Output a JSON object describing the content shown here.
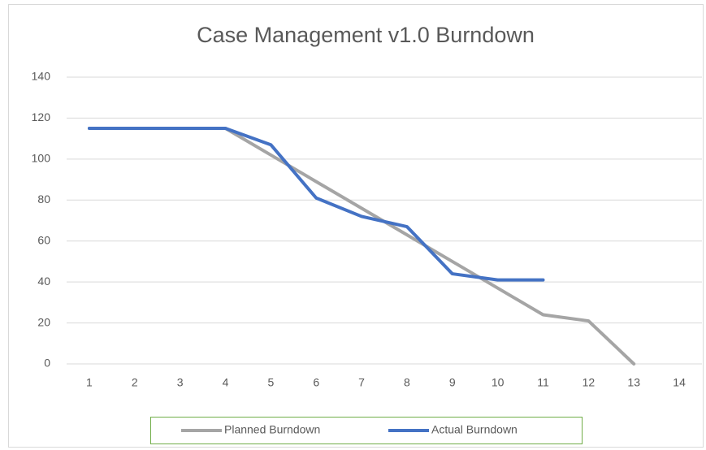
{
  "chart_data": {
    "type": "line",
    "title": "Case Management v1.0 Burndown",
    "categories": [
      1,
      2,
      3,
      4,
      5,
      6,
      7,
      8,
      9,
      10,
      11,
      12,
      13,
      14
    ],
    "series": [
      {
        "name": "Planned Burndown",
        "color": "#a5a5a5",
        "values": [
          115,
          115,
          115,
          115,
          102,
          89,
          76,
          63,
          50,
          37,
          24,
          21,
          0,
          null
        ]
      },
      {
        "name": "Actual Burndown",
        "color": "#4472c4",
        "values": [
          115,
          115,
          115,
          115,
          107,
          81,
          72,
          67,
          44,
          41,
          41,
          null,
          null,
          null
        ]
      }
    ],
    "ylim": [
      0,
      140
    ],
    "yticks": [
      0,
      20,
      40,
      60,
      80,
      100,
      120,
      140
    ],
    "grid": true,
    "legend": "bottom"
  }
}
